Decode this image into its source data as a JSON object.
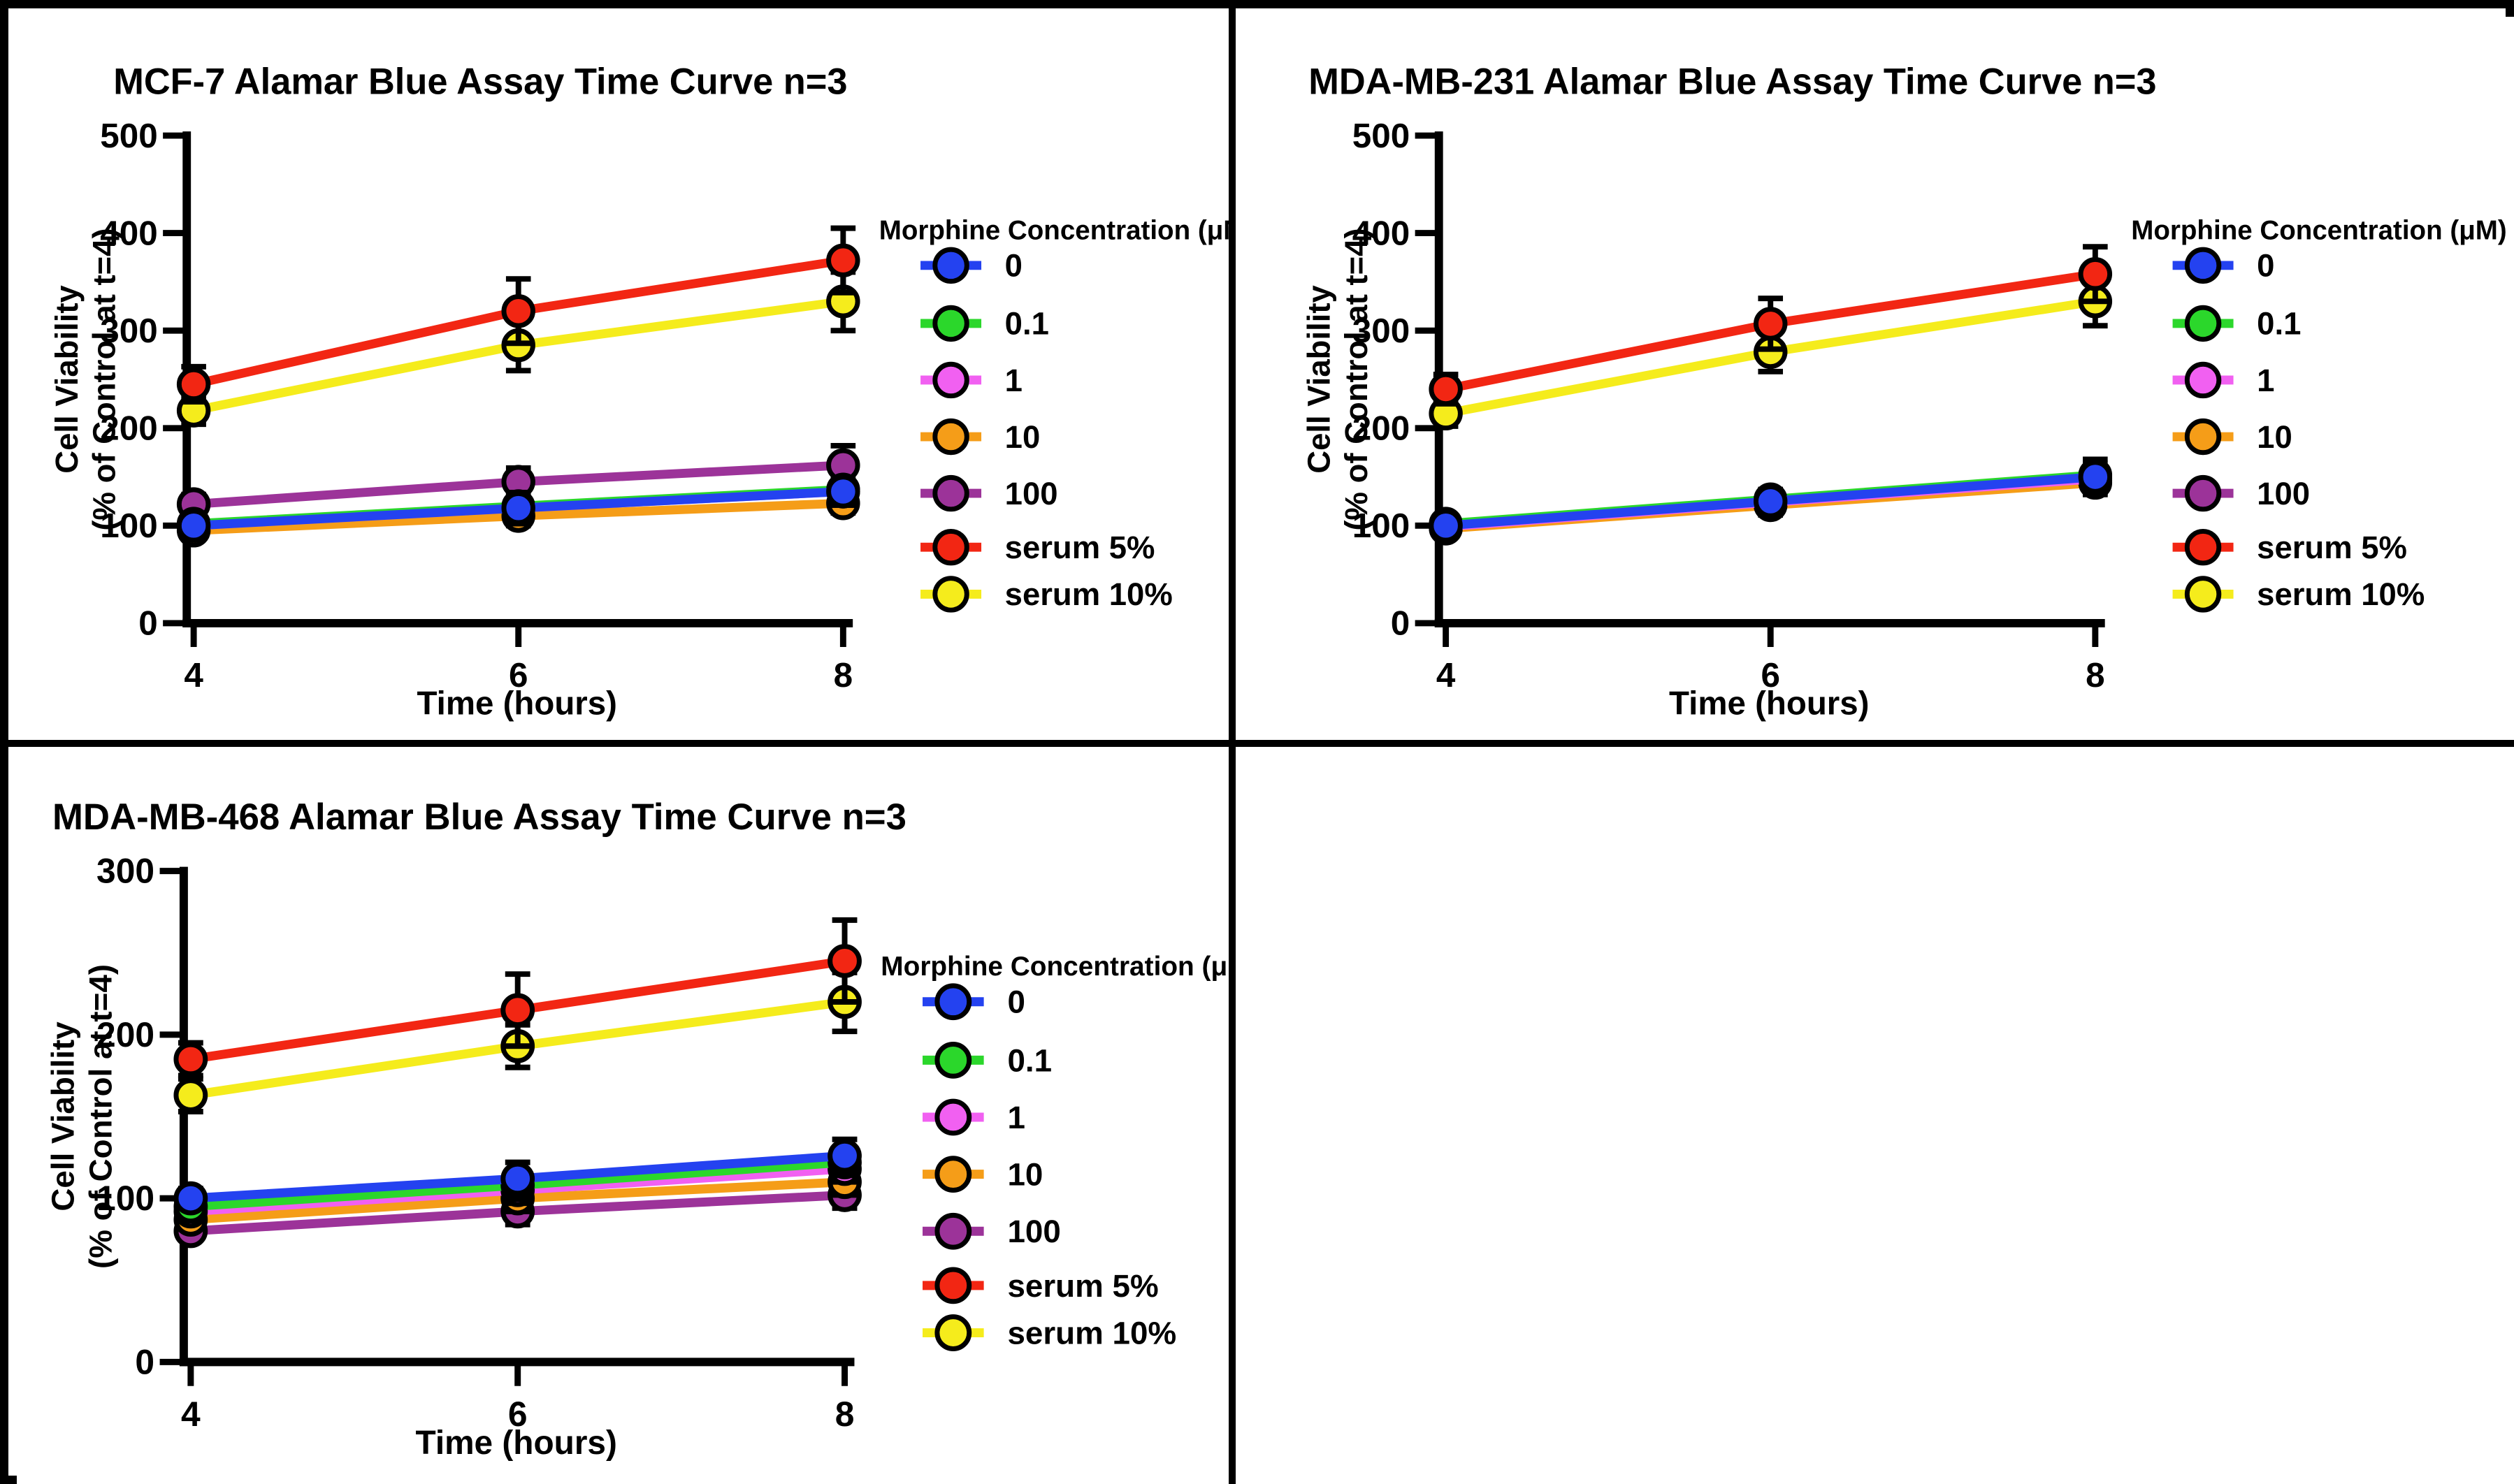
{
  "figure": {
    "ylabel_line1": "Cell Viability",
    "ylabel_line2": "(% of Control at t=4)",
    "xlabel": "Time (hours)",
    "legend_title": "Morphine Concentration (μM)",
    "axis_color": "#000000",
    "background": "#ffffff"
  },
  "chart_data": [
    {
      "type": "line",
      "id": "mcf7",
      "title": "MCF-7 Alamar Blue Assay Time Curve n=3",
      "xlabel": "Time (hours)",
      "ylabel": "Cell Viability (% of Control at t=4)",
      "legend_title": "Morphine Concentration (μM)",
      "x": [
        4,
        6,
        8
      ],
      "xticks": [
        4,
        6,
        8
      ],
      "ylim": [
        0,
        500
      ],
      "yticks": [
        0,
        100,
        200,
        300,
        400,
        500
      ],
      "grid": false,
      "legend_position": "right",
      "series": [
        {
          "name": "0",
          "color": "#2442f0",
          "values": [
            100,
            118,
            135
          ],
          "errors": [
            10,
            16,
            14
          ]
        },
        {
          "name": "0.1",
          "color": "#2bd72b",
          "values": [
            102,
            120,
            137
          ],
          "errors": [
            8,
            10,
            10
          ]
        },
        {
          "name": "1",
          "color": "#f160f1",
          "values": [
            100,
            118,
            135
          ],
          "errors": [
            8,
            10,
            10
          ]
        },
        {
          "name": "10",
          "color": "#f59d18",
          "values": [
            95,
            110,
            123
          ],
          "errors": [
            8,
            10,
            10
          ]
        },
        {
          "name": "100",
          "color": "#9c3399",
          "values": [
            122,
            145,
            162
          ],
          "errors": [
            10,
            14,
            20
          ]
        },
        {
          "name": "serum 5%",
          "color": "#f22613",
          "values": [
            245,
            320,
            372
          ],
          "errors": [
            18,
            33,
            33
          ]
        },
        {
          "name": "serum 10%",
          "color": "#f5ec1c",
          "values": [
            218,
            285,
            330
          ],
          "errors": [
            14,
            26,
            30
          ]
        }
      ]
    },
    {
      "type": "line",
      "id": "mda-mb-231",
      "title": "MDA-MB-231 Alamar Blue Assay Time Curve n=3",
      "xlabel": "Time (hours)",
      "ylabel": "Cell Viability (% of Control at t=4)",
      "legend_title": "Morphine Concentration (μM)",
      "x": [
        4,
        6,
        8
      ],
      "xticks": [
        4,
        6,
        8
      ],
      "ylim": [
        0,
        500
      ],
      "yticks": [
        0,
        100,
        200,
        300,
        400,
        500
      ],
      "grid": false,
      "legend_position": "right",
      "series": [
        {
          "name": "0",
          "color": "#2442f0",
          "values": [
            100,
            125,
            150
          ],
          "errors": [
            8,
            12,
            18
          ]
        },
        {
          "name": "0.1",
          "color": "#2bd72b",
          "values": [
            102,
            127,
            152
          ],
          "errors": [
            6,
            10,
            12
          ]
        },
        {
          "name": "1",
          "color": "#f160f1",
          "values": [
            99,
            124,
            148
          ],
          "errors": [
            6,
            10,
            12
          ]
        },
        {
          "name": "10",
          "color": "#f59d18",
          "values": [
            97,
            121,
            144
          ],
          "errors": [
            6,
            10,
            12
          ]
        },
        {
          "name": "100",
          "color": "#9c3399",
          "values": [
            98,
            123,
            146
          ],
          "errors": [
            6,
            10,
            12
          ]
        },
        {
          "name": "serum 5%",
          "color": "#f22613",
          "values": [
            240,
            307,
            358
          ],
          "errors": [
            15,
            26,
            28
          ]
        },
        {
          "name": "serum 10%",
          "color": "#f5ec1c",
          "values": [
            215,
            278,
            330
          ],
          "errors": [
            13,
            20,
            25
          ]
        }
      ]
    },
    {
      "type": "line",
      "id": "mda-mb-468",
      "title": "MDA-MB-468 Alamar Blue Assay Time Curve n=3",
      "xlabel": "Time (hours)",
      "ylabel": "Cell Viability (% of Control at t=4)",
      "legend_title": "Morphine Concentration (μM)",
      "x": [
        4,
        6,
        8
      ],
      "xticks": [
        4,
        6,
        8
      ],
      "ylim": [
        0,
        300
      ],
      "yticks": [
        0,
        100,
        200,
        300
      ],
      "grid": false,
      "legend_position": "right",
      "series": [
        {
          "name": "0",
          "color": "#2442f0",
          "values": [
            100,
            112,
            126
          ],
          "errors": [
            6,
            10,
            10
          ]
        },
        {
          "name": "0.1",
          "color": "#2bd72b",
          "values": [
            95,
            108,
            122
          ],
          "errors": [
            5,
            8,
            8
          ]
        },
        {
          "name": "1",
          "color": "#f160f1",
          "values": [
            92,
            105,
            118
          ],
          "errors": [
            5,
            8,
            8
          ]
        },
        {
          "name": "10",
          "color": "#f59d18",
          "values": [
            87,
            100,
            110
          ],
          "errors": [
            5,
            8,
            8
          ]
        },
        {
          "name": "100",
          "color": "#9c3399",
          "values": [
            80,
            92,
            102
          ],
          "errors": [
            5,
            8,
            8
          ]
        },
        {
          "name": "serum 5%",
          "color": "#f22613",
          "values": [
            185,
            215,
            245
          ],
          "errors": [
            10,
            22,
            25
          ]
        },
        {
          "name": "serum 10%",
          "color": "#f5ec1c",
          "values": [
            163,
            193,
            220
          ],
          "errors": [
            10,
            13,
            18
          ]
        }
      ]
    }
  ]
}
